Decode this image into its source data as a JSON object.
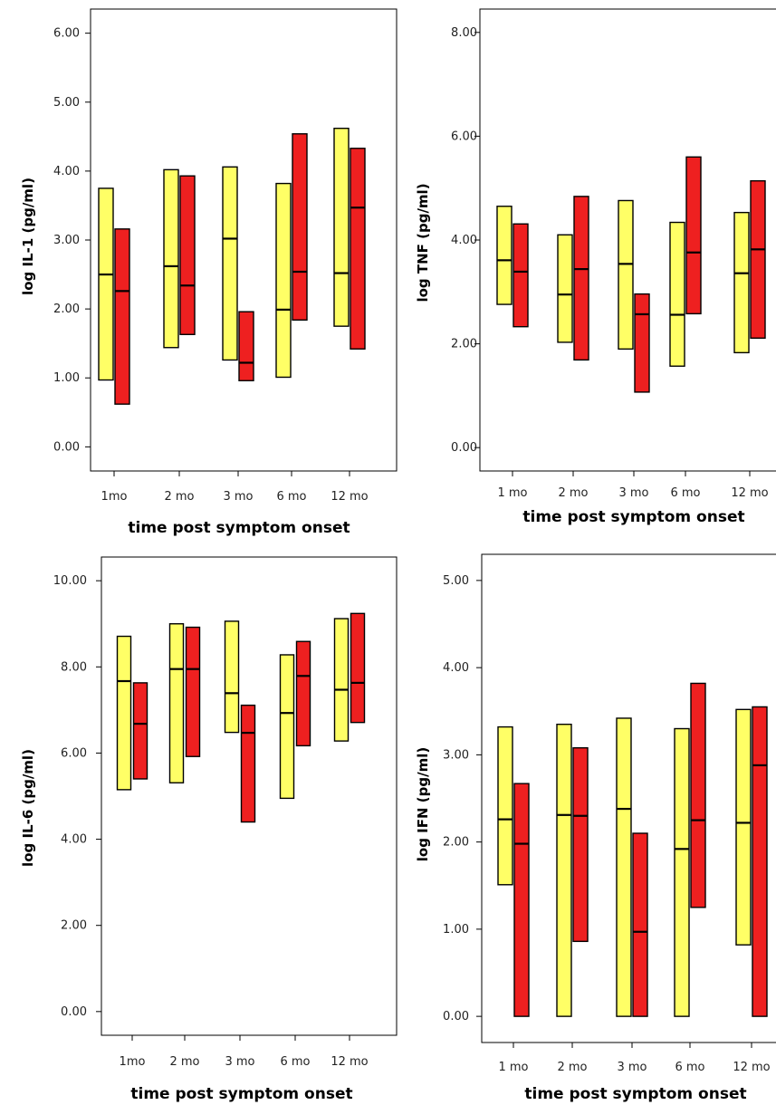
{
  "colors": {
    "group_a": "#ffff66",
    "group_b": "#ee2020",
    "frame": "#000000"
  },
  "chart_data": [
    {
      "type": "box",
      "title": "",
      "xlabel": "time post symptom onset",
      "ylabel": "log IL-1 (pg/ml)",
      "categories": [
        "1mo",
        "2 mo",
        "3 mo",
        "6 mo",
        "12 mo"
      ],
      "yticks": [
        "0.00",
        "1.00",
        "2.00",
        "3.00",
        "4.00",
        "5.00",
        "6.00"
      ],
      "ylim": [
        -0.35,
        6.35
      ],
      "series": [
        {
          "color_key": "group_a",
          "boxes": [
            {
              "low": 0.97,
              "median": 2.5,
              "high": 3.75
            },
            {
              "low": 1.44,
              "median": 2.62,
              "high": 4.02
            },
            {
              "low": 1.26,
              "median": 3.02,
              "high": 4.06
            },
            {
              "low": 1.01,
              "median": 1.99,
              "high": 3.82
            },
            {
              "low": 1.75,
              "median": 2.52,
              "high": 4.62
            }
          ]
        },
        {
          "color_key": "group_b",
          "boxes": [
            {
              "low": 0.62,
              "median": 2.26,
              "high": 3.16
            },
            {
              "low": 1.63,
              "median": 2.34,
              "high": 3.93
            },
            {
              "low": 0.96,
              "median": 1.22,
              "high": 1.96
            },
            {
              "low": 1.84,
              "median": 2.54,
              "high": 4.54
            },
            {
              "low": 1.42,
              "median": 3.47,
              "high": 4.33
            }
          ]
        }
      ]
    },
    {
      "type": "box",
      "title": "",
      "xlabel": "time post symptom onset",
      "ylabel": "log TNF (pg/ml)",
      "categories": [
        "1 mo",
        "2 mo",
        "3 mo",
        "6 mo",
        "12 mo"
      ],
      "yticks": [
        "0.00",
        "2.00",
        "4.00",
        "6.00",
        "8.00"
      ],
      "ylim": [
        -0.45,
        8.45
      ],
      "series": [
        {
          "color_key": "group_a",
          "boxes": [
            {
              "low": 2.76,
              "median": 3.61,
              "high": 4.65
            },
            {
              "low": 2.03,
              "median": 2.95,
              "high": 4.1
            },
            {
              "low": 1.9,
              "median": 3.54,
              "high": 4.76
            },
            {
              "low": 1.57,
              "median": 2.56,
              "high": 4.34
            },
            {
              "low": 1.83,
              "median": 3.36,
              "high": 4.53
            }
          ]
        },
        {
          "color_key": "group_b",
          "boxes": [
            {
              "low": 2.33,
              "median": 3.39,
              "high": 4.31
            },
            {
              "low": 1.69,
              "median": 3.44,
              "high": 4.84
            },
            {
              "low": 1.07,
              "median": 2.57,
              "high": 2.96
            },
            {
              "low": 2.58,
              "median": 3.76,
              "high": 5.6
            },
            {
              "low": 2.11,
              "median": 3.82,
              "high": 5.14
            }
          ]
        }
      ]
    },
    {
      "type": "box",
      "title": "",
      "xlabel": "time post symptom onset",
      "ylabel": "log IL-6 (pg/ml)",
      "categories": [
        "1mo",
        "2 mo",
        "3 mo",
        "6 mo",
        "12 mo"
      ],
      "yticks": [
        "0.00",
        "2.00",
        "4.00",
        "6.00",
        "8.00",
        "10.00"
      ],
      "ylim": [
        -0.55,
        10.55
      ],
      "series": [
        {
          "color_key": "group_a",
          "boxes": [
            {
              "low": 5.15,
              "median": 7.67,
              "high": 8.71
            },
            {
              "low": 5.31,
              "median": 7.95,
              "high": 9.0
            },
            {
              "low": 6.48,
              "median": 7.39,
              "high": 9.06
            },
            {
              "low": 4.95,
              "median": 6.93,
              "high": 8.28
            },
            {
              "low": 6.28,
              "median": 7.47,
              "high": 9.12
            }
          ]
        },
        {
          "color_key": "group_b",
          "boxes": [
            {
              "low": 5.4,
              "median": 6.68,
              "high": 7.63
            },
            {
              "low": 5.92,
              "median": 7.95,
              "high": 8.92
            },
            {
              "low": 4.4,
              "median": 6.47,
              "high": 7.11
            },
            {
              "low": 6.17,
              "median": 7.79,
              "high": 8.59
            },
            {
              "low": 6.71,
              "median": 7.63,
              "high": 9.24
            }
          ]
        }
      ]
    },
    {
      "type": "box",
      "title": "",
      "xlabel": "time post symptom onset",
      "ylabel": "log IFN (pg/ml)",
      "categories": [
        "1 mo",
        "2 mo",
        "3 mo",
        "6 mo",
        "12 mo"
      ],
      "yticks": [
        "0.00",
        "1.00",
        "2.00",
        "3.00",
        "4.00",
        "5.00"
      ],
      "ylim": [
        -0.3,
        5.3
      ],
      "series": [
        {
          "color_key": "group_a",
          "boxes": [
            {
              "low": 1.51,
              "median": 2.26,
              "high": 3.32
            },
            {
              "low": 0.0,
              "median": 2.31,
              "high": 3.35
            },
            {
              "low": 0.0,
              "median": 2.38,
              "high": 3.42
            },
            {
              "low": 0.0,
              "median": 1.92,
              "high": 3.3
            },
            {
              "low": 0.82,
              "median": 2.22,
              "high": 3.52
            }
          ]
        },
        {
          "color_key": "group_b",
          "boxes": [
            {
              "low": 0.0,
              "median": 1.98,
              "high": 2.67
            },
            {
              "low": 0.86,
              "median": 2.3,
              "high": 3.08
            },
            {
              "low": 0.0,
              "median": 0.97,
              "high": 2.1
            },
            {
              "low": 1.25,
              "median": 2.25,
              "high": 3.82
            },
            {
              "low": 0.0,
              "median": 2.88,
              "high": 3.55
            }
          ]
        }
      ]
    }
  ]
}
